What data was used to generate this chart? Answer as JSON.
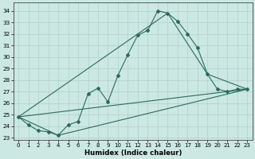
{
  "xlabel": "Humidex (Indice chaleur)",
  "bg_color": "#cbe8e3",
  "grid_color": "#b0d0cc",
  "line_color": "#2a6b5e",
  "xlim": [
    -0.5,
    23.5
  ],
  "ylim": [
    22.8,
    34.7
  ],
  "xticks": [
    0,
    1,
    2,
    3,
    4,
    5,
    6,
    7,
    8,
    9,
    10,
    11,
    12,
    13,
    14,
    15,
    16,
    17,
    18,
    19,
    20,
    21,
    22,
    23
  ],
  "yticks": [
    23,
    24,
    25,
    26,
    27,
    28,
    29,
    30,
    31,
    32,
    33,
    34
  ],
  "main_curve": {
    "x": [
      0,
      1,
      2,
      3,
      4,
      5,
      6,
      7,
      8,
      9,
      10,
      11,
      12,
      13,
      14,
      15,
      16,
      17,
      18,
      19,
      20,
      21,
      22,
      23
    ],
    "y": [
      24.8,
      24.1,
      23.6,
      23.5,
      23.2,
      24.1,
      24.4,
      26.8,
      27.3,
      26.1,
      28.4,
      30.2,
      31.9,
      32.3,
      34.0,
      33.8,
      33.1,
      32.0,
      30.8,
      28.5,
      27.2,
      27.0,
      27.2,
      27.2
    ]
  },
  "upper_envelope": {
    "x": [
      0,
      15,
      19,
      23
    ],
    "y": [
      24.8,
      33.8,
      28.5,
      27.2
    ]
  },
  "lower_envelope": {
    "x": [
      0,
      4,
      23
    ],
    "y": [
      24.8,
      23.2,
      27.2
    ]
  },
  "baseline": {
    "x": [
      0,
      23
    ],
    "y": [
      24.8,
      27.2
    ]
  }
}
